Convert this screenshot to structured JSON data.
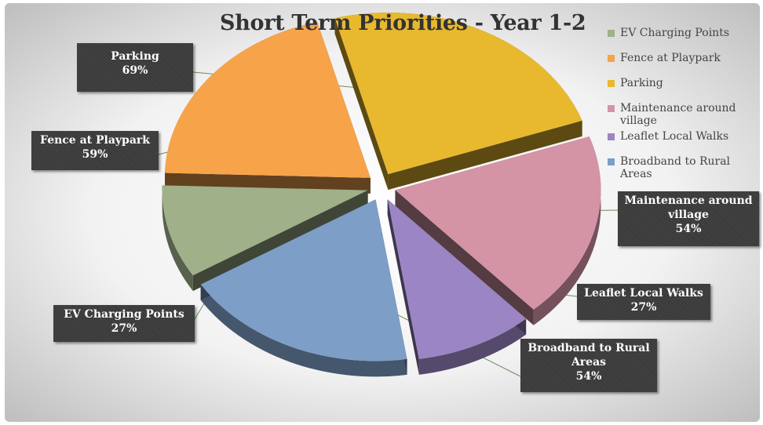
{
  "chart_data": {
    "type": "pie",
    "title": "Short Term Priorities - Year 1-2",
    "categories": [
      "EV Charging Points",
      "Fence at Playpark",
      "Parking",
      "Maintenance around village",
      "Leaflet Local Walks",
      "Broadband to Rural Areas"
    ],
    "values": [
      27,
      59,
      69,
      54,
      27,
      54
    ],
    "value_labels": [
      "27%",
      "59%",
      "69%",
      "54%",
      "27%",
      "54%"
    ],
    "colors": [
      "#a0b089",
      "#f6a34a",
      "#e8b92e",
      "#d494a6",
      "#9b85c4",
      "#7d9ec6"
    ],
    "legend_position": "right",
    "style": "3d-exploded"
  },
  "legend": {
    "items": [
      {
        "label": "EV Charging Points",
        "color": "#a0b089"
      },
      {
        "label": "Fence at Playpark",
        "color": "#f6a34a"
      },
      {
        "label": "Parking",
        "color": "#e8b92e"
      },
      {
        "label": "Maintenance around village",
        "color": "#d494a6"
      },
      {
        "label": "Leaflet Local Walks",
        "color": "#9b85c4"
      },
      {
        "label": "Broadband to Rural Areas",
        "color": "#7d9ec6"
      }
    ]
  },
  "callouts": {
    "parking": {
      "label": "Parking",
      "value": "69%"
    },
    "fence": {
      "label": "Fence at Playpark",
      "value": "59%"
    },
    "ev": {
      "label": "EV Charging Points",
      "value": "27%"
    },
    "maintenance": {
      "label": "Maintenance around village",
      "value": "54%"
    },
    "leaflet": {
      "label": "Leaflet Local Walks",
      "value": "27%"
    },
    "broadband": {
      "label": "Broadband to Rural Areas",
      "value": "54%"
    }
  }
}
